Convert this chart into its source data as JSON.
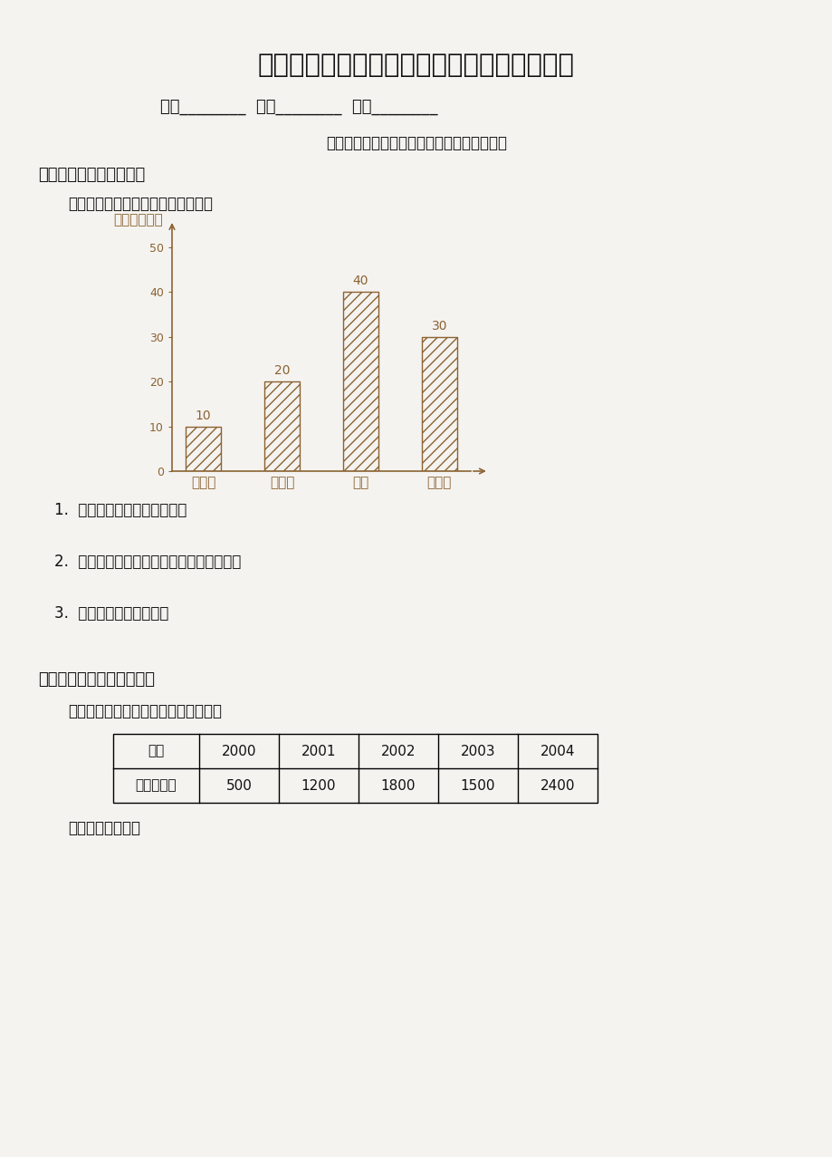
{
  "title": "（人教新课标）四年级数学下册第七单元测试",
  "subtitle_line": "班级________  姓名________  分数________",
  "section_header": "教材基础知识针对性训练与基本能力巩固提高",
  "section1_title": "一、根据统计图完成问题",
  "section1_desc": "一个路口半小时内车辆通过如下图：",
  "chart_ylabel": "（单位：辆）",
  "bar_categories": [
    "小汽车",
    "摩托车",
    "货车",
    "自行车"
  ],
  "bar_values": [
    10,
    20,
    40,
    30
  ],
  "bar_color": "#8B6332",
  "bar_hatch": "///",
  "yticks": [
    0,
    10,
    20,
    30,
    40,
    50
  ],
  "q1": "1.  半小时内共通过多少辆车？",
  "q2": "2.  半小时内通过的货车比小汽车多多少辆？",
  "q3": "3.  你还能提出哪些问题？",
  "section2_title": "二、根据统计表完成统计。",
  "section2_desc": "某饲养场近五年里饲养家兔情况如下：",
  "table_headers": [
    "年份",
    "2000",
    "2001",
    "2002",
    "2003",
    "2004"
  ],
  "table_row1_label": "数量（只）",
  "table_row1_values": [
    "500",
    "1200",
    "1800",
    "1500",
    "2400"
  ],
  "section2_note": "制成折线统计图。",
  "bg_color": "#f5f3f0",
  "text_color": "#111111",
  "brown_color": "#8B6332"
}
